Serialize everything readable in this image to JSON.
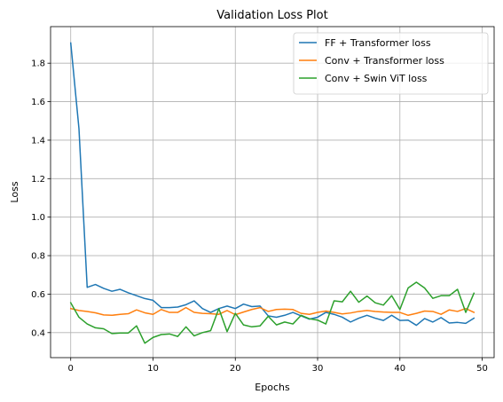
{
  "chart_data": {
    "type": "line",
    "title": "Validation Loss Plot",
    "xlabel": "Epochs",
    "ylabel": "Loss",
    "xlim": [
      -2.45,
      51.45
    ],
    "ylim": [
      0.27,
      1.99
    ],
    "xticks": [
      0,
      10,
      20,
      30,
      40,
      50
    ],
    "yticks": [
      0.4,
      0.6,
      0.8,
      1.0,
      1.2,
      1.4,
      1.6,
      1.8
    ],
    "ytick_labels": [
      "0.4",
      "0.6",
      "0.8",
      "1.0",
      "1.2",
      "1.4",
      "1.6",
      "1.8"
    ],
    "grid": true,
    "legend_position": "top-right",
    "x": [
      0,
      1,
      2,
      3,
      4,
      5,
      6,
      7,
      8,
      9,
      10,
      11,
      12,
      13,
      14,
      15,
      16,
      17,
      18,
      19,
      20,
      21,
      22,
      23,
      24,
      25,
      26,
      27,
      28,
      29,
      30,
      31,
      32,
      33,
      34,
      35,
      36,
      37,
      38,
      39,
      40,
      41,
      42,
      43,
      44,
      45,
      46,
      47,
      48,
      49
    ],
    "series": [
      {
        "name": "FF + Transformer loss",
        "color": "#1f77b4",
        "values": [
          1.905,
          1.46,
          0.635,
          0.65,
          0.63,
          0.615,
          0.625,
          0.607,
          0.592,
          0.577,
          0.568,
          0.53,
          0.53,
          0.533,
          0.545,
          0.565,
          0.525,
          0.505,
          0.525,
          0.538,
          0.525,
          0.548,
          0.535,
          0.538,
          0.487,
          0.48,
          0.49,
          0.505,
          0.487,
          0.47,
          0.48,
          0.505,
          0.495,
          0.48,
          0.455,
          0.475,
          0.49,
          0.475,
          0.463,
          0.49,
          0.463,
          0.465,
          0.438,
          0.473,
          0.455,
          0.478,
          0.45,
          0.453,
          0.448,
          0.475
        ]
      },
      {
        "name": "Conv + Transformer loss",
        "color": "#ff7f0e",
        "values": [
          0.525,
          0.515,
          0.51,
          0.503,
          0.492,
          0.49,
          0.495,
          0.498,
          0.518,
          0.503,
          0.495,
          0.52,
          0.505,
          0.505,
          0.53,
          0.505,
          0.5,
          0.498,
          0.495,
          0.515,
          0.493,
          0.507,
          0.52,
          0.53,
          0.51,
          0.52,
          0.522,
          0.52,
          0.5,
          0.495,
          0.505,
          0.512,
          0.505,
          0.497,
          0.502,
          0.51,
          0.515,
          0.51,
          0.507,
          0.505,
          0.505,
          0.49,
          0.5,
          0.512,
          0.51,
          0.495,
          0.518,
          0.51,
          0.525,
          0.505
        ]
      },
      {
        "name": "Conv + Swin ViT loss",
        "color": "#2ca02c",
        "values": [
          0.555,
          0.48,
          0.445,
          0.425,
          0.42,
          0.395,
          0.398,
          0.398,
          0.435,
          0.345,
          0.375,
          0.39,
          0.393,
          0.38,
          0.43,
          0.383,
          0.4,
          0.41,
          0.525,
          0.405,
          0.5,
          0.44,
          0.43,
          0.435,
          0.485,
          0.44,
          0.455,
          0.445,
          0.49,
          0.472,
          0.465,
          0.445,
          0.565,
          0.56,
          0.615,
          0.558,
          0.59,
          0.555,
          0.543,
          0.592,
          0.52,
          0.632,
          0.662,
          0.632,
          0.578,
          0.592,
          0.592,
          0.625,
          0.505,
          0.605
        ]
      }
    ]
  }
}
